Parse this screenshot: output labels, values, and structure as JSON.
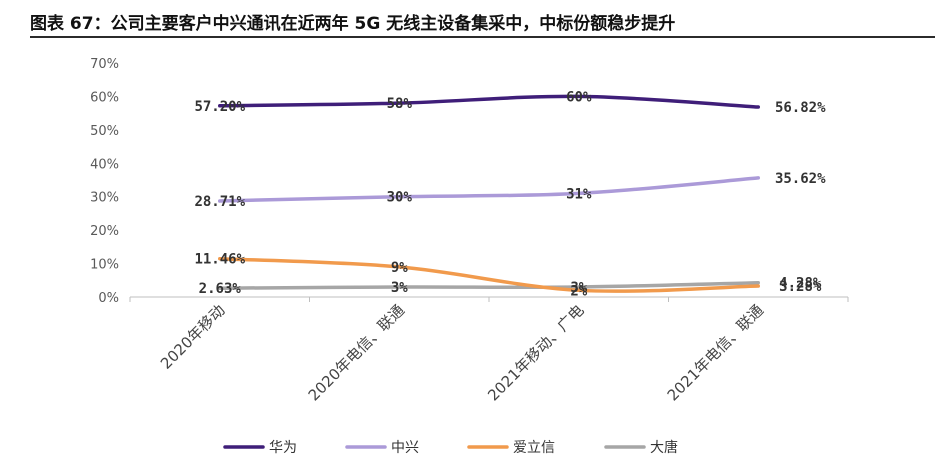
{
  "title": "图表 67：公司主要客户中兴通讯在近两年 5G 无线主设备集采中，中标份额稳步提升",
  "chart_data": {
    "type": "line",
    "categories": [
      "2020年移动",
      "2020年电信、联通",
      "2021年移动、广电",
      "2021年电信、联通"
    ],
    "ylim": [
      0,
      70
    ],
    "yticks": [
      0,
      10,
      20,
      30,
      40,
      50,
      60,
      70
    ],
    "ytick_labels": [
      "0%",
      "10%",
      "20%",
      "30%",
      "40%",
      "50%",
      "60%",
      "70%"
    ],
    "grid": false,
    "legend_position": "bottom",
    "series": [
      {
        "name": "华为",
        "color": "#3f1e79",
        "values": [
          57.2,
          58,
          60,
          56.82
        ],
        "labels": [
          "57.20%",
          "58%",
          "60%",
          "56.82%"
        ]
      },
      {
        "name": "中兴",
        "color": "#ab9ad8",
        "values": [
          28.71,
          30,
          31,
          35.62
        ],
        "labels": [
          "28.71%",
          "30%",
          "31%",
          "35.62%"
        ]
      },
      {
        "name": "爱立信",
        "color": "#f19a4c",
        "values": [
          11.46,
          9,
          2,
          3.28
        ],
        "labels": [
          "11.46%",
          "9%",
          "2%",
          "3.28%"
        ]
      },
      {
        "name": "大唐",
        "color": "#a6a6a6",
        "values": [
          2.63,
          3,
          3,
          4.28
        ],
        "labels": [
          "2.63%",
          "3%",
          "3%",
          "4.28%"
        ]
      }
    ]
  }
}
